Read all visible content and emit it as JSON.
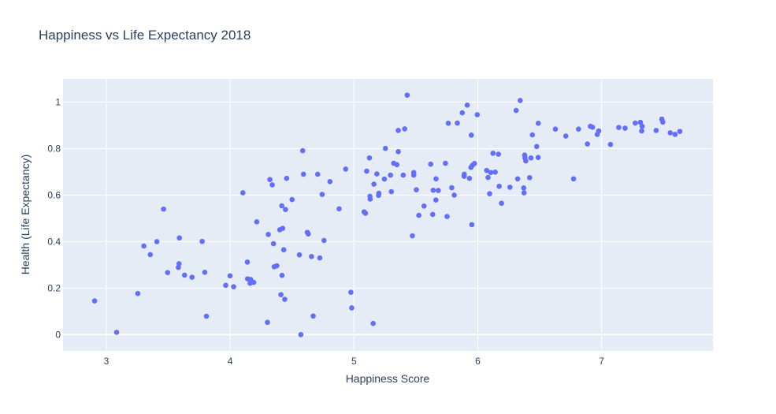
{
  "chart_data": {
    "type": "scatter",
    "title": "Happiness vs Life Expectancy 2018",
    "xlabel": "Happiness Score",
    "ylabel": "Health (Life Expectancy)",
    "xlim": [
      2.65,
      7.9
    ],
    "ylim": [
      -0.07,
      1.1
    ],
    "xticks": [
      3,
      4,
      5,
      6,
      7
    ],
    "yticks": [
      0,
      0.2,
      0.4,
      0.6,
      0.8,
      1
    ],
    "grid": true,
    "colors": {
      "marker": "#636efa",
      "plot_bg": "#e5ecf6",
      "grid": "#ffffff",
      "text": "#2a3f5f"
    },
    "series": [
      {
        "points": [
          [
            7.632,
            0.874
          ],
          [
            7.594,
            0.861
          ],
          [
            7.555,
            0.868
          ],
          [
            7.495,
            0.914
          ],
          [
            7.487,
            0.927
          ],
          [
            7.441,
            0.878
          ],
          [
            7.328,
            0.896
          ],
          [
            7.324,
            0.876
          ],
          [
            7.314,
            0.913
          ],
          [
            7.272,
            0.91
          ],
          [
            7.19,
            0.888
          ],
          [
            7.139,
            0.891
          ],
          [
            7.072,
            0.818
          ],
          [
            6.977,
            0.876
          ],
          [
            6.965,
            0.861
          ],
          [
            6.927,
            0.892
          ],
          [
            6.91,
            0.896
          ],
          [
            6.886,
            0.82
          ],
          [
            6.814,
            0.884
          ],
          [
            6.774,
            0.67
          ],
          [
            6.711,
            0.854
          ],
          [
            6.627,
            0.884
          ],
          [
            6.489,
            0.909
          ],
          [
            6.488,
            0.762
          ],
          [
            6.476,
            0.809
          ],
          [
            6.441,
            0.859
          ],
          [
            6.43,
            0.76
          ],
          [
            6.419,
            0.675
          ],
          [
            6.388,
            0.747
          ],
          [
            6.382,
            0.76
          ],
          [
            6.379,
            0.772
          ],
          [
            6.374,
            0.61
          ],
          [
            6.371,
            0.631
          ],
          [
            6.343,
            1.007
          ],
          [
            6.322,
            0.67
          ],
          [
            6.31,
            0.964
          ],
          [
            6.26,
            0.634
          ],
          [
            6.192,
            0.565
          ],
          [
            6.173,
            0.638
          ],
          [
            6.167,
            0.776
          ],
          [
            6.141,
            0.699
          ],
          [
            6.123,
            0.78
          ],
          [
            6.105,
            0.697
          ],
          [
            6.096,
            0.606
          ],
          [
            6.083,
            0.676
          ],
          [
            6.072,
            0.706
          ],
          [
            5.996,
            0.946
          ],
          [
            5.973,
            0.736
          ],
          [
            5.956,
            0.728
          ],
          [
            5.952,
            0.473
          ],
          [
            5.948,
            0.858
          ],
          [
            5.945,
            0.719
          ],
          [
            5.933,
            0.672
          ],
          [
            5.915,
            0.987
          ],
          [
            5.891,
            0.69
          ],
          [
            5.89,
            0.681
          ],
          [
            5.875,
            0.954
          ],
          [
            5.835,
            0.91
          ],
          [
            5.81,
            0.6
          ],
          [
            5.79,
            0.632
          ],
          [
            5.762,
            0.909
          ],
          [
            5.752,
            0.508
          ],
          [
            5.739,
            0.737
          ],
          [
            5.681,
            0.62
          ],
          [
            5.663,
            0.67
          ],
          [
            5.662,
            0.579
          ],
          [
            5.64,
            0.621
          ],
          [
            5.636,
            0.517
          ],
          [
            5.62,
            0.733
          ],
          [
            5.566,
            0.553
          ],
          [
            5.524,
            0.513
          ],
          [
            5.504,
            0.623
          ],
          [
            5.483,
            0.686
          ],
          [
            5.483,
            0.697
          ],
          [
            5.472,
            0.425
          ],
          [
            5.43,
            1.03
          ],
          [
            5.41,
            0.885
          ],
          [
            5.398,
            0.686
          ],
          [
            5.358,
            0.878
          ],
          [
            5.358,
            0.787
          ],
          [
            5.347,
            0.731
          ],
          [
            5.321,
            0.737
          ],
          [
            5.302,
            0.615
          ],
          [
            5.295,
            0.686
          ],
          [
            5.254,
            0.801
          ],
          [
            5.246,
            0.669
          ],
          [
            5.201,
            0.608
          ],
          [
            5.199,
            0.599
          ],
          [
            5.185,
            0.691
          ],
          [
            5.161,
            0.647
          ],
          [
            5.155,
            0.048
          ],
          [
            5.131,
            0.583
          ],
          [
            5.129,
            0.595
          ],
          [
            5.125,
            0.76
          ],
          [
            5.103,
            0.703
          ],
          [
            5.093,
            0.522
          ],
          [
            5.082,
            0.528
          ],
          [
            4.982,
            0.115
          ],
          [
            4.975,
            0.182
          ],
          [
            4.933,
            0.712
          ],
          [
            4.88,
            0.541
          ],
          [
            4.806,
            0.658
          ],
          [
            4.758,
            0.405
          ],
          [
            4.743,
            0.603
          ],
          [
            4.724,
            0.33
          ],
          [
            4.707,
            0.69
          ],
          [
            4.671,
            0.08
          ],
          [
            4.657,
            0.336
          ],
          [
            4.631,
            0.433
          ],
          [
            4.623,
            0.44
          ],
          [
            4.592,
            0.69
          ],
          [
            4.586,
            0.791
          ],
          [
            4.571,
            0.0
          ],
          [
            4.559,
            0.343
          ],
          [
            4.5,
            0.581
          ],
          [
            4.456,
            0.672
          ],
          [
            4.447,
            0.538
          ],
          [
            4.441,
            0.152
          ],
          [
            4.433,
            0.365
          ],
          [
            4.424,
            0.457
          ],
          [
            4.419,
            0.255
          ],
          [
            4.417,
            0.554
          ],
          [
            4.41,
            0.172
          ],
          [
            4.401,
            0.451
          ],
          [
            4.377,
            0.296
          ],
          [
            4.356,
            0.292
          ],
          [
            4.35,
            0.391
          ],
          [
            4.34,
            0.644
          ],
          [
            4.321,
            0.667
          ],
          [
            4.308,
            0.431
          ],
          [
            4.301,
            0.053
          ],
          [
            4.215,
            0.485
          ],
          [
            4.19,
            0.225
          ],
          [
            4.166,
            0.237
          ],
          [
            4.161,
            0.221
          ],
          [
            4.141,
            0.24
          ],
          [
            4.139,
            0.312
          ],
          [
            4.103,
            0.61
          ],
          [
            4.028,
            0.206
          ],
          [
            3.999,
            0.253
          ],
          [
            3.964,
            0.212
          ],
          [
            3.808,
            0.079
          ],
          [
            3.795,
            0.268
          ],
          [
            3.774,
            0.401
          ],
          [
            3.692,
            0.247
          ],
          [
            3.632,
            0.256
          ],
          [
            3.59,
            0.416
          ],
          [
            3.587,
            0.305
          ],
          [
            3.582,
            0.289
          ],
          [
            3.495,
            0.267
          ],
          [
            3.462,
            0.54
          ],
          [
            3.408,
            0.4
          ],
          [
            3.355,
            0.344
          ],
          [
            3.303,
            0.381
          ],
          [
            3.254,
            0.177
          ],
          [
            3.083,
            0.01
          ],
          [
            2.905,
            0.145
          ]
        ]
      }
    ]
  }
}
